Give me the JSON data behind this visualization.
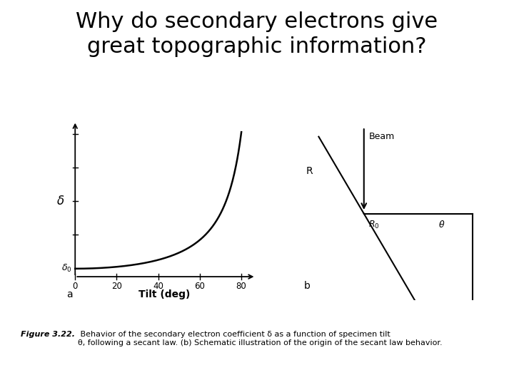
{
  "title_line1": "Why do secondary electrons give",
  "title_line2": "great topographic information?",
  "title_fontsize": 22,
  "title_color": "#000000",
  "bg_color": "#ffffff",
  "fig_caption_bold": "Figure 3.22.",
  "fig_caption_normal": " Behavior of the secondary electron coefficient δ as a function of specimen tilt\nθ, following a secant law. (b) Schematic illustration of the origin of the secant law behavior.",
  "plot_a_xlabel": "Tilt (deg)",
  "plot_a_xticks": [
    0,
    20,
    40,
    60,
    80
  ],
  "plot_a_label": "a",
  "plot_b_label": "b",
  "curve_theta_max": 80,
  "n_points": 400
}
